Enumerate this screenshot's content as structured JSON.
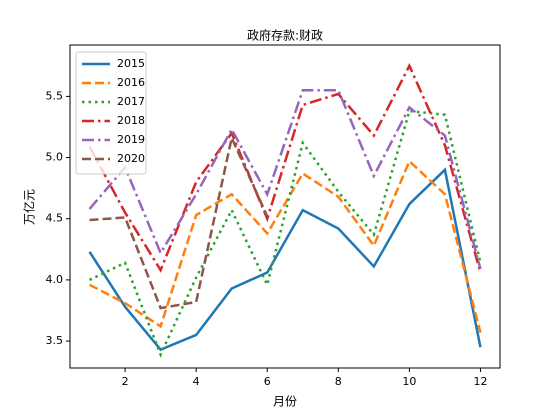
{
  "chart_data": {
    "type": "line",
    "title": "政府存款:财政",
    "x_label": "月份",
    "y_label": "万亿元",
    "x": [
      1,
      2,
      3,
      4,
      5,
      6,
      7,
      8,
      9,
      10,
      11,
      12
    ],
    "xlim": [
      0.45,
      12.55
    ],
    "xticks": [
      2,
      4,
      6,
      8,
      10,
      12
    ],
    "ylim": [
      3.28,
      5.92
    ],
    "yticks": [
      3.5,
      {
        "value": 4,
        "label": "4.0"
      },
      4.5,
      {
        "value": 5,
        "label": "5.0"
      },
      5.5
    ],
    "legend": "upper left",
    "series": [
      {
        "name": "2015",
        "color": "#1f77b4",
        "dash": "solid",
        "values": [
          4.23,
          3.78,
          3.43,
          3.55,
          3.93,
          4.06,
          4.57,
          4.42,
          4.11,
          4.62,
          4.9,
          3.45
        ]
      },
      {
        "name": "2016",
        "color": "#ff7f0e",
        "dash": "dashed",
        "values": [
          3.96,
          3.81,
          3.62,
          4.53,
          4.7,
          4.38,
          4.87,
          4.68,
          4.28,
          4.97,
          4.7,
          3.57
        ]
      },
      {
        "name": "2017",
        "color": "#2ca02c",
        "dash": "dotted",
        "values": [
          4.0,
          4.14,
          3.39,
          4.02,
          4.57,
          3.96,
          5.12,
          4.72,
          4.37,
          5.38,
          5.35,
          4.14
        ]
      },
      {
        "name": "2018",
        "color": "#d62728",
        "dash": "dashdot",
        "values": [
          5.09,
          4.55,
          4.08,
          4.8,
          5.2,
          4.5,
          5.43,
          5.52,
          5.18,
          5.75,
          5.1,
          4.06
        ]
      },
      {
        "name": "2019",
        "color": "#9467bd",
        "dash": "dashdot",
        "values": [
          4.58,
          4.92,
          4.22,
          4.7,
          5.23,
          4.7,
          5.55,
          5.55,
          4.85,
          5.41,
          5.18,
          4.09
        ]
      },
      {
        "name": "2020",
        "color": "#8c564b",
        "dash": "dashed",
        "values": [
          4.49,
          4.51,
          3.77,
          3.82,
          5.16,
          4.52,
          null,
          null,
          null,
          null,
          null,
          null
        ]
      }
    ]
  }
}
